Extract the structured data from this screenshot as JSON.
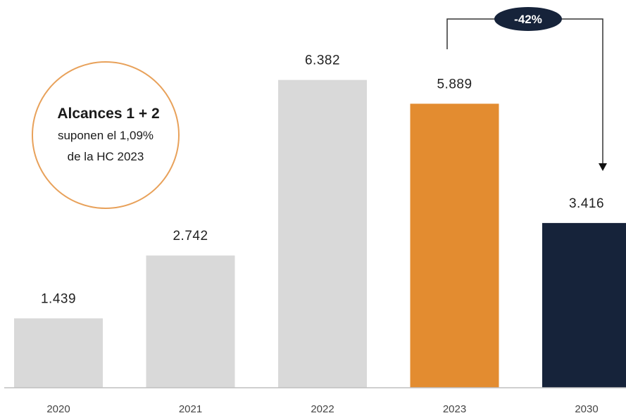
{
  "chart_data": {
    "type": "bar",
    "categories": [
      "2020",
      "2021",
      "2022",
      "2023",
      "2030"
    ],
    "values": [
      1439,
      2742,
      6382,
      5889,
      3416
    ],
    "value_labels": [
      "1.439",
      "2.742",
      "6.382",
      "5.889",
      "3.416"
    ],
    "bar_colors": [
      "#d9d9d9",
      "#d9d9d9",
      "#d9d9d9",
      "#e38c30",
      "#16233a"
    ],
    "ylim": [
      0,
      7500
    ],
    "grid": false,
    "legend": "none",
    "annotation": {
      "title": "Alcances 1 + 2",
      "line1": "suponen el 1,09%",
      "line2": "de la HC 2023",
      "circle_color": "#e8a15a"
    },
    "reduction": {
      "label": "-42%",
      "from": "2023",
      "to": "2030",
      "badge_color": "#16233a"
    }
  }
}
